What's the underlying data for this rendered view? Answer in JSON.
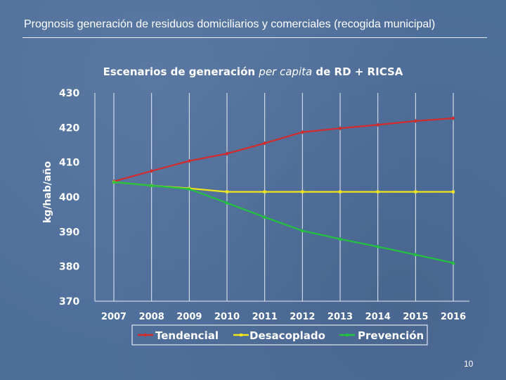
{
  "slide": {
    "title": "Prognosis generación de residuos domiciliarios y comerciales (recogida municipal)",
    "page_number": "10"
  },
  "chart_data": {
    "type": "line",
    "title_parts": {
      "before": "Escenarios de generación ",
      "italic": "per capita",
      "after": " de RD + RICSA"
    },
    "xlabel": "",
    "ylabel": "kg/hab/año",
    "ylim": [
      370,
      430
    ],
    "yticks": [
      370,
      380,
      390,
      400,
      410,
      420,
      430
    ],
    "categories": [
      "2007",
      "2008",
      "2009",
      "2010",
      "2011",
      "2012",
      "2013",
      "2014",
      "2015",
      "2016"
    ],
    "grid": "vertical gridlines at categories",
    "legend_position": "bottom",
    "series": [
      {
        "name": "Tendencial",
        "color": "#d42a2a",
        "marker": "diamond",
        "values": [
          404.5,
          407.5,
          410.4,
          412.5,
          415.5,
          418.7,
          419.8,
          420.8,
          421.9,
          422.7
        ]
      },
      {
        "name": "Desacoplado",
        "color": "#f2e61a",
        "marker": "square",
        "values": [
          404.3,
          403.3,
          402.5,
          401.5,
          401.5,
          401.5,
          401.5,
          401.5,
          401.5,
          401.5
        ]
      },
      {
        "name": "Prevención",
        "color": "#22c33d",
        "marker": "triangle",
        "values": [
          404.3,
          403.3,
          402.3,
          398.3,
          394.2,
          390.3,
          387.9,
          385.7,
          383.4,
          381.0
        ]
      }
    ],
    "colors": {
      "background": "#4f6f9b",
      "grid": "#e6ecf5",
      "text": "#ffffff",
      "legend_box": "#ffffff"
    }
  }
}
